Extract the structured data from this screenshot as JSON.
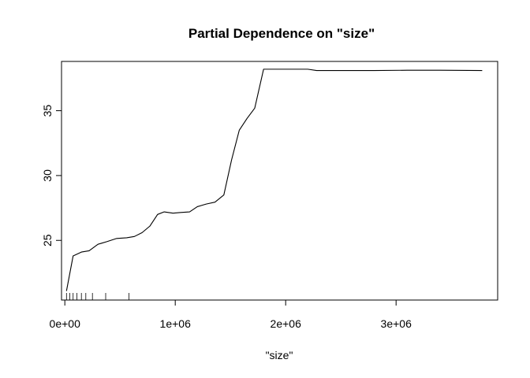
{
  "chart_data": {
    "type": "line",
    "title": "Partial Dependence on \"size\"",
    "xlabel": "\"size\"",
    "ylabel": "",
    "xlim": [
      -30000,
      3920000
    ],
    "ylim": [
      20.4,
      38.8
    ],
    "xticks": [
      {
        "value": 0,
        "label": "0e+00"
      },
      {
        "value": 1000000,
        "label": "1e+06"
      },
      {
        "value": 2000000,
        "label": "2e+06"
      },
      {
        "value": 3000000,
        "label": "3e+06"
      }
    ],
    "yticks": [
      {
        "value": 25,
        "label": "25"
      },
      {
        "value": 30,
        "label": "30"
      },
      {
        "value": 35,
        "label": "35"
      }
    ],
    "grid": false,
    "legend": "none",
    "line_color": "#000000",
    "series": [
      {
        "x": [
          15000,
          75000,
          150000,
          220000,
          300000,
          380000,
          470000,
          560000,
          630000,
          700000,
          770000,
          840000,
          900000,
          980000,
          1050000,
          1130000,
          1200000,
          1280000,
          1360000,
          1440000,
          1510000,
          1580000,
          1650000,
          1720000,
          1800000,
          1900000,
          2000000,
          2100000,
          2200000,
          2280000,
          2500000,
          2800000,
          3100000,
          3400000,
          3780000
        ],
        "y": [
          21.1,
          23.8,
          24.1,
          24.2,
          24.7,
          24.9,
          25.15,
          25.2,
          25.3,
          25.6,
          26.1,
          27.0,
          27.2,
          27.1,
          27.15,
          27.2,
          27.6,
          27.8,
          27.95,
          28.5,
          31.2,
          33.5,
          34.4,
          35.2,
          38.2,
          38.2,
          38.2,
          38.2,
          38.2,
          38.1,
          38.1,
          38.1,
          38.12,
          38.12,
          38.1
        ]
      }
    ],
    "rug": [
      15000,
      45000,
      75000,
      110000,
      150000,
      190000,
      250000,
      370000,
      580000
    ]
  }
}
